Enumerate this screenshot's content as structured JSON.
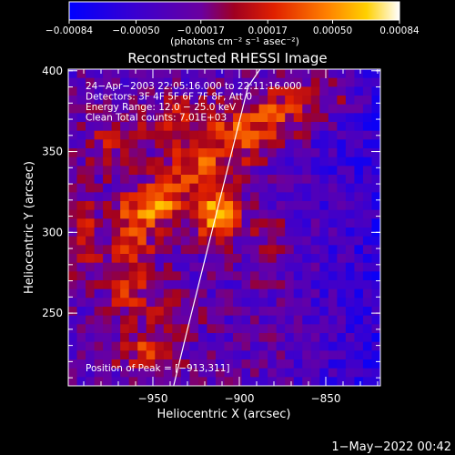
{
  "chart_data": {
    "type": "heatmap",
    "title": "Reconstructed RHESSI Image",
    "xlabel": "Heliocentric X (arcsec)",
    "ylabel": "Heliocentric Y (arcsec)",
    "xlim": [
      -997,
      -907
    ],
    "ylim": [
      205,
      401
    ],
    "x_ticks": [
      -950,
      -900,
      -850
    ],
    "x_tick_labels": [
      "−950",
      "−900",
      "−850"
    ],
    "y_ticks": [
      250,
      300,
      350,
      400
    ],
    "y_tick_labels": [
      "250",
      "300",
      "350",
      "400"
    ],
    "colorbar": {
      "ticks": [
        -0.00084,
        -0.0005,
        -0.00017,
        0.00017,
        0.0005,
        0.00084
      ],
      "tick_labels": [
        "−0.00084",
        "−0.00050",
        "−0.00017",
        "0.00017",
        "0.00050",
        "0.00084"
      ],
      "unit_label": "(photons cm⁻² s⁻¹ asec⁻²)",
      "colors": [
        "#0000ff",
        "#3a00d0",
        "#6a00a0",
        "#a00020",
        "#e02000",
        "#ff8000",
        "#ffd000",
        "#ffffff"
      ]
    },
    "annotations": [
      "24−Apr−2003 22:05:16.000 to 22:11:16.000",
      "Detectors: 3F 4F 5F 6F 7F 8F, Att 0",
      "Energy Range: 12.0 − 25.0 keV",
      "Clean     Total counts: 7.01E+03"
    ],
    "peak_label": "Position of Peak = [−913,311]",
    "peak": {
      "x": -913,
      "y": 311
    },
    "limb_curve": {
      "x": [
        -938,
        -930,
        -923,
        -916,
        -909,
        -902,
        -895,
        -888
      ],
      "y": [
        205,
        240,
        270,
        300,
        330,
        360,
        390,
        401
      ]
    },
    "sources": [
      {
        "x": -913,
        "y": 311,
        "amp": 1.0,
        "sx": 9,
        "sy": 11
      },
      {
        "x": -945,
        "y": 318,
        "amp": 0.75,
        "sx": 11,
        "sy": 9
      },
      {
        "x": -960,
        "y": 305,
        "amp": 0.55,
        "sx": 8,
        "sy": 14
      },
      {
        "x": -925,
        "y": 340,
        "amp": 0.6,
        "sx": 14,
        "sy": 10
      },
      {
        "x": -900,
        "y": 360,
        "amp": 0.55,
        "sx": 12,
        "sy": 12
      },
      {
        "x": -935,
        "y": 370,
        "amp": 0.45,
        "sx": 15,
        "sy": 10
      },
      {
        "x": -965,
        "y": 270,
        "amp": 0.45,
        "sx": 10,
        "sy": 18
      },
      {
        "x": -940,
        "y": 250,
        "amp": 0.4,
        "sx": 10,
        "sy": 14
      },
      {
        "x": -955,
        "y": 225,
        "amp": 0.45,
        "sx": 12,
        "sy": 10
      },
      {
        "x": -975,
        "y": 355,
        "amp": 0.35,
        "sx": 10,
        "sy": 12
      },
      {
        "x": -875,
        "y": 375,
        "amp": 0.5,
        "sx": 14,
        "sy": 12
      },
      {
        "x": -845,
        "y": 385,
        "amp": 0.35,
        "sx": 12,
        "sy": 10
      },
      {
        "x": -880,
        "y": 290,
        "amp": 0.25,
        "sx": 12,
        "sy": 14
      },
      {
        "x": -990,
        "y": 300,
        "amp": 0.35,
        "sx": 8,
        "sy": 20
      }
    ],
    "date_stamp": "1−May−2022 00:42"
  }
}
